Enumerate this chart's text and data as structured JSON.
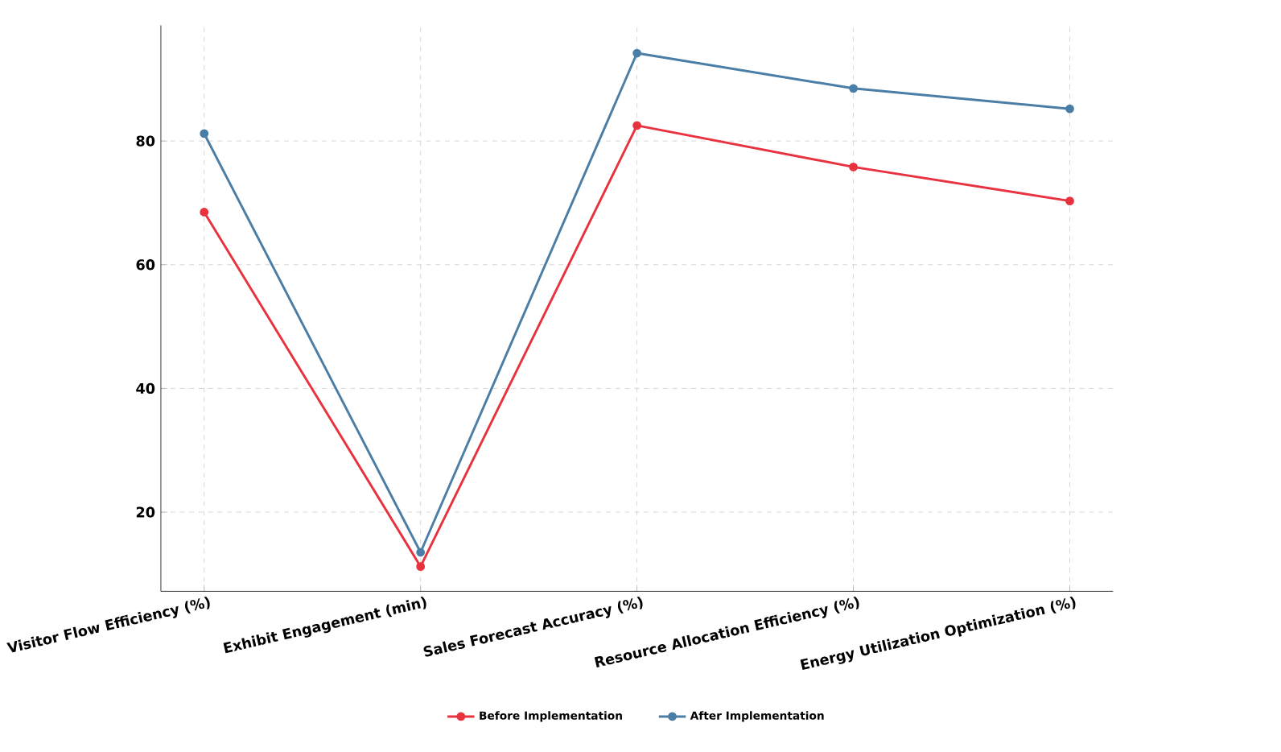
{
  "chart_data": {
    "type": "line",
    "categories": [
      "Visitor Flow Efficiency (%)",
      "Exhibit Engagement (min)",
      "Sales Forecast Accuracy (%)",
      "Resource Allocation Efficiency (%)",
      "Energy Utilization Optimization (%)"
    ],
    "series": [
      {
        "name": "Before Implementation",
        "color": "#e8323f",
        "values": [
          68.5,
          11.2,
          82.5,
          75.8,
          70.3
        ]
      },
      {
        "name": "After Implementation",
        "color": "#4a7ea6",
        "values": [
          81.2,
          13.5,
          94.2,
          88.5,
          85.2
        ]
      }
    ],
    "ylim": [
      7.2,
      98.7
    ],
    "yticks": [
      20,
      40,
      60,
      80
    ],
    "grid": true,
    "legend": "bottom",
    "marker": "circle",
    "line_style": "solid"
  }
}
